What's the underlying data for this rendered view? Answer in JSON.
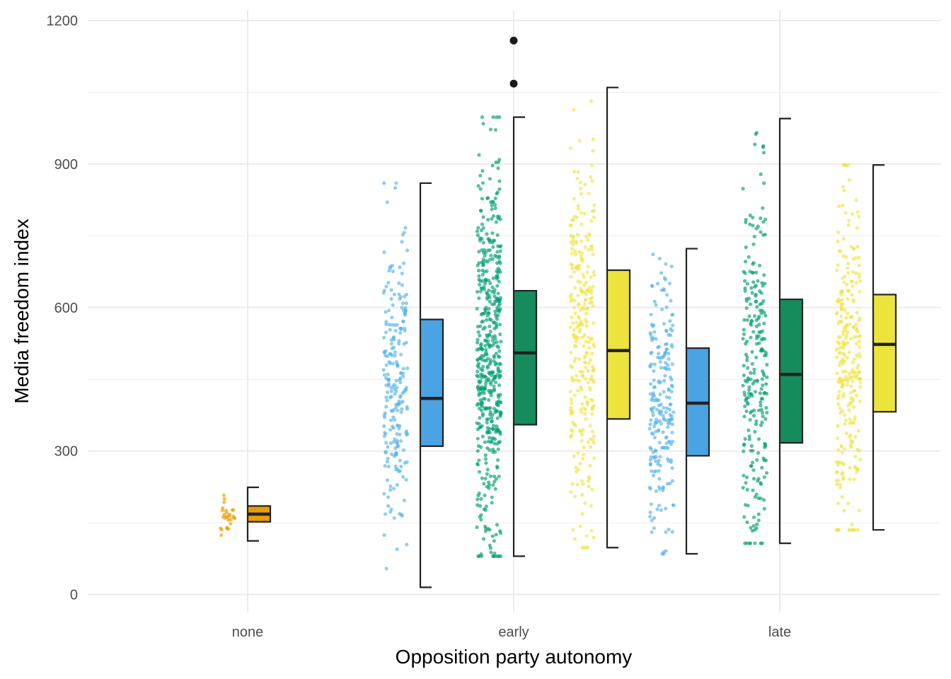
{
  "chart_data": {
    "type": "raincloud",
    "xlabel": "Opposition party autonomy",
    "ylabel": "Media freedom index",
    "categories": [
      "none",
      "early",
      "late"
    ],
    "y_ticks": [
      0,
      300,
      600,
      900,
      1200
    ],
    "ylim": [
      -40,
      1230
    ],
    "grid": true,
    "legend": "none",
    "colors": {
      "orange": "#e69f00",
      "blue": "#56b4e9",
      "green": "#009e73",
      "yellow": "#f0e442",
      "box_orange": "#e69f00",
      "box_blue": "#4aa3e3",
      "box_green": "#168c5c",
      "box_yellow": "#ece43c",
      "grid": "#ebebeb",
      "outline": "#222222"
    },
    "groups": [
      {
        "category": "none",
        "slot": 0,
        "color": "orange",
        "box_color": "box_orange",
        "n": 28,
        "min": 112,
        "q1": 152,
        "median": 168,
        "q3": 185,
        "max": 224,
        "outliers": [],
        "sd": 28
      },
      {
        "category": "early",
        "slot": -1,
        "color": "blue",
        "box_color": "box_blue",
        "n": 230,
        "min": 15,
        "q1": 310,
        "median": 410,
        "q3": 575,
        "max": 860,
        "outliers": [],
        "sd": 160
      },
      {
        "category": "early",
        "slot": 0,
        "color": "green",
        "box_color": "box_green",
        "n": 500,
        "min": 80,
        "q1": 355,
        "median": 505,
        "q3": 635,
        "max": 998,
        "outliers": [
          1068,
          1158
        ],
        "sd": 200
      },
      {
        "category": "early",
        "slot": 1,
        "color": "yellow",
        "box_color": "box_yellow",
        "n": 290,
        "min": 98,
        "q1": 367,
        "median": 510,
        "q3": 678,
        "max": 1060,
        "outliers": [],
        "sd": 210
      },
      {
        "category": "late",
        "slot": -1,
        "color": "blue",
        "box_color": "box_blue",
        "n": 230,
        "min": 85,
        "q1": 290,
        "median": 400,
        "q3": 515,
        "max": 723,
        "outliers": [],
        "sd": 140
      },
      {
        "category": "late",
        "slot": 0,
        "color": "green",
        "box_color": "box_green",
        "n": 250,
        "min": 107,
        "q1": 317,
        "median": 460,
        "q3": 617,
        "max": 995,
        "outliers": [],
        "sd": 190
      },
      {
        "category": "late",
        "slot": 1,
        "color": "yellow",
        "box_color": "box_yellow",
        "n": 280,
        "min": 135,
        "q1": 382,
        "median": 523,
        "q3": 627,
        "max": 898,
        "outliers": [],
        "sd": 175
      }
    ]
  }
}
